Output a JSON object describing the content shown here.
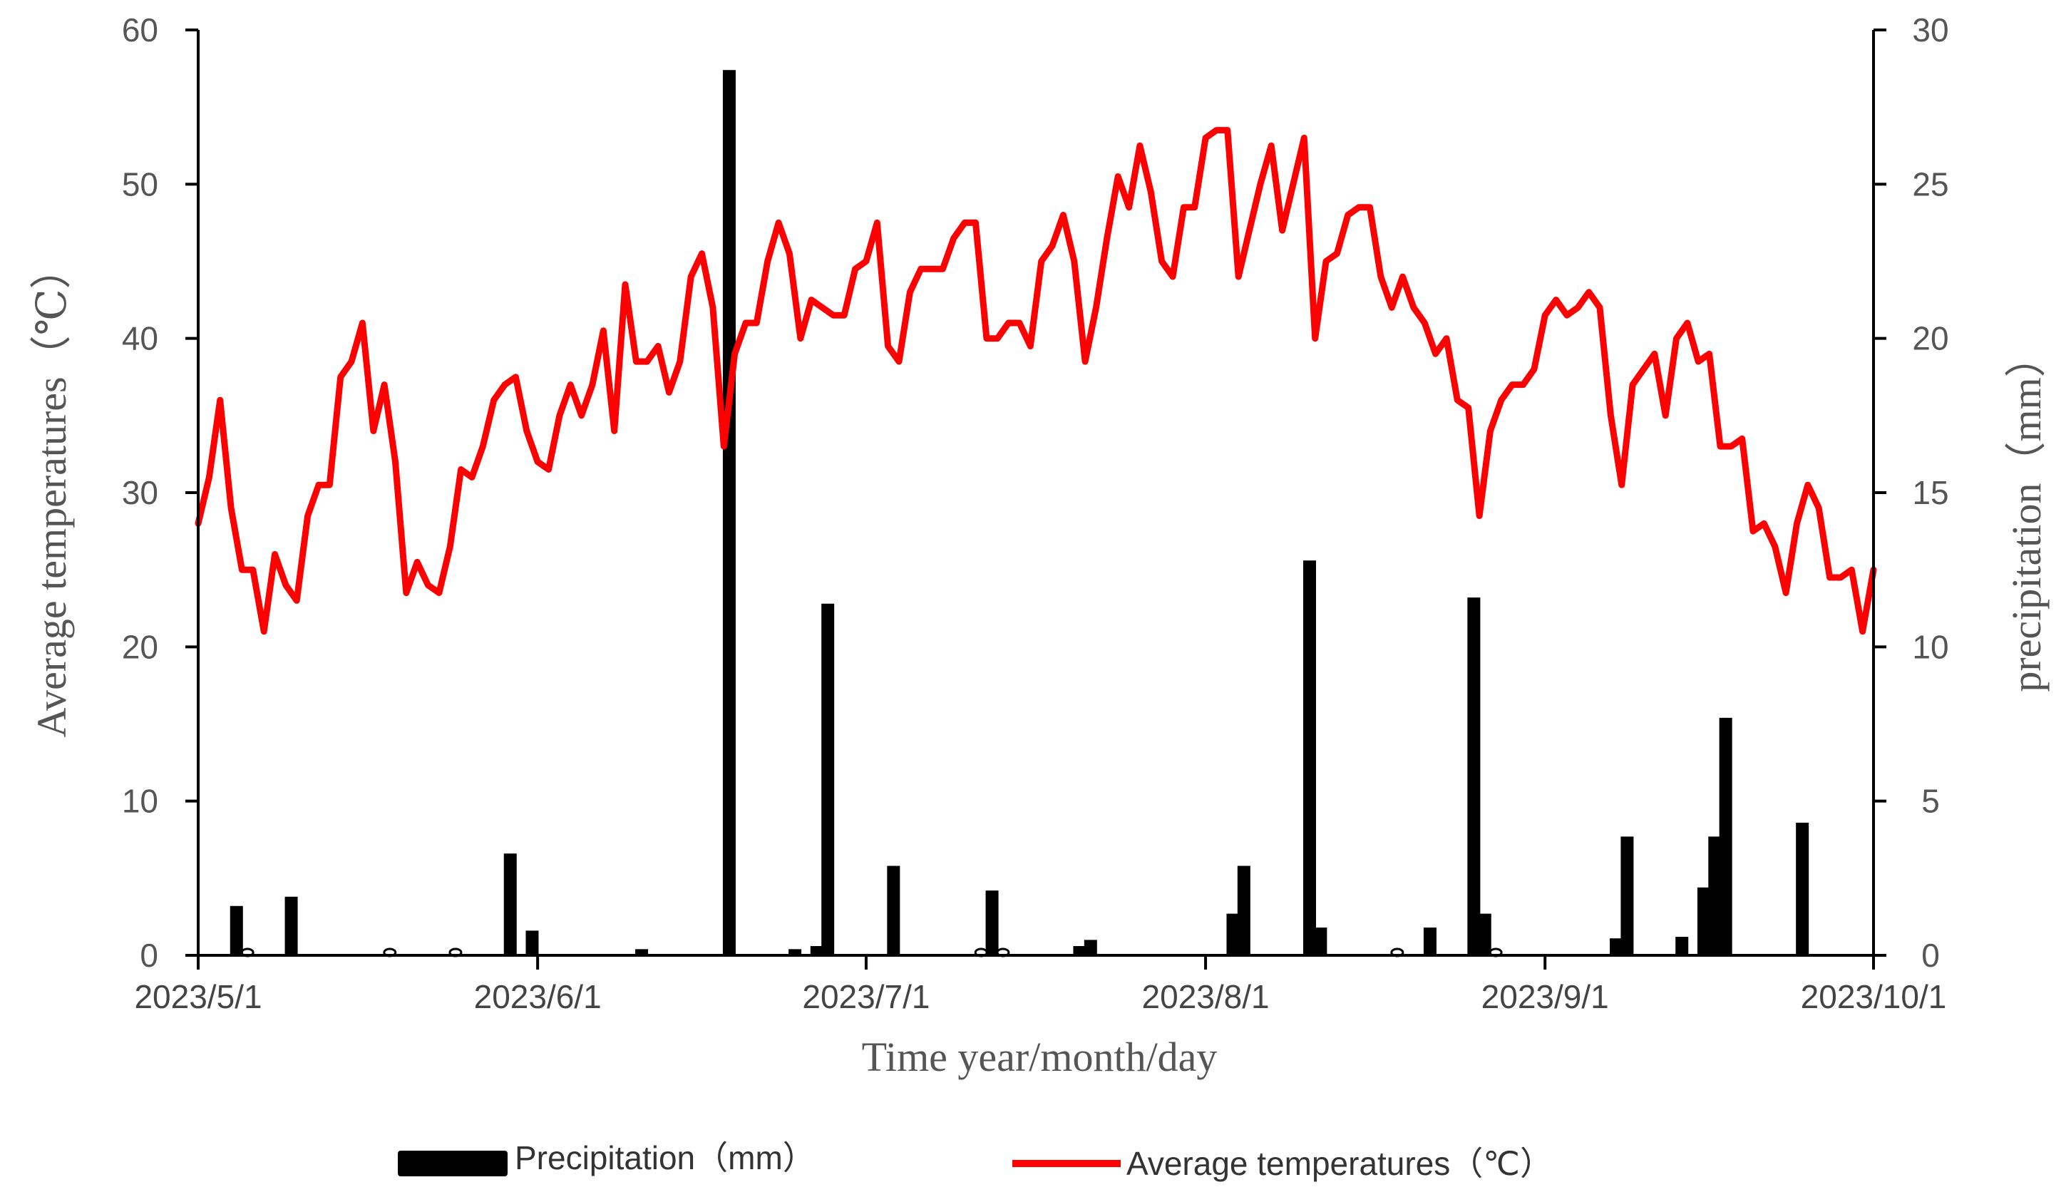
{
  "chart_data": {
    "type": "bar+line",
    "title": "",
    "xlabel": "Time year/month/day",
    "ylabel_left": "Average temperatures（℃）",
    "ylabel_right": "precipitation（mm）",
    "x_start": "2023/5/1",
    "x_end": "2023/10/1",
    "x_ticks": [
      {
        "label": "2023/5/1",
        "day": 0
      },
      {
        "label": "2023/6/1",
        "day": 31
      },
      {
        "label": "2023/7/1",
        "day": 61
      },
      {
        "label": "2023/8/1",
        "day": 92
      },
      {
        "label": "2023/9/1",
        "day": 123
      },
      {
        "label": "2023/10/1",
        "day": 153
      }
    ],
    "ylim_left": [
      0,
      60
    ],
    "yticks_left": [
      "0",
      "10",
      "20",
      "30",
      "40",
      "50",
      "60"
    ],
    "ylim_right": [
      0,
      30
    ],
    "yticks_right": [
      "0",
      "5",
      "10",
      "15",
      "20",
      "25",
      "30"
    ],
    "legend": [
      {
        "name": "Precipitation（mm）",
        "color": "#000000",
        "kind": "bar"
      },
      {
        "name": "Average temperatures（℃）",
        "color": "#ff0000",
        "kind": "line"
      }
    ],
    "series": [
      {
        "name": "Average temperatures（℃）",
        "axis": "left",
        "color": "#ff0000",
        "points": [
          {
            "day": 0,
            "value": 28
          },
          {
            "day": 1,
            "value": 31
          },
          {
            "day": 2,
            "value": 36
          },
          {
            "day": 3,
            "value": 29
          },
          {
            "day": 4,
            "value": 25
          },
          {
            "day": 5,
            "value": 25
          },
          {
            "day": 6,
            "value": 21
          },
          {
            "day": 7,
            "value": 26
          },
          {
            "day": 8,
            "value": 24
          },
          {
            "day": 9,
            "value": 23
          },
          {
            "day": 10,
            "value": 28.5
          },
          {
            "day": 11,
            "value": 30.5
          },
          {
            "day": 12,
            "value": 30.5
          },
          {
            "day": 13,
            "value": 37.5
          },
          {
            "day": 14,
            "value": 38.5
          },
          {
            "day": 15,
            "value": 41
          },
          {
            "day": 16,
            "value": 34
          },
          {
            "day": 17,
            "value": 37
          },
          {
            "day": 18,
            "value": 32
          },
          {
            "day": 19,
            "value": 23.5
          },
          {
            "day": 20,
            "value": 25.5
          },
          {
            "day": 21,
            "value": 24
          },
          {
            "day": 22,
            "value": 23.5
          },
          {
            "day": 23,
            "value": 26.5
          },
          {
            "day": 24,
            "value": 31.5
          },
          {
            "day": 25,
            "value": 31
          },
          {
            "day": 26,
            "value": 33
          },
          {
            "day": 27,
            "value": 36
          },
          {
            "day": 28,
            "value": 37
          },
          {
            "day": 29,
            "value": 37.5
          },
          {
            "day": 30,
            "value": 34
          },
          {
            "day": 31,
            "value": 32
          },
          {
            "day": 32,
            "value": 31.5
          },
          {
            "day": 33,
            "value": 35
          },
          {
            "day": 34,
            "value": 37
          },
          {
            "day": 35,
            "value": 35
          },
          {
            "day": 36,
            "value": 37
          },
          {
            "day": 37,
            "value": 40.5
          },
          {
            "day": 38,
            "value": 34
          },
          {
            "day": 39,
            "value": 43.5
          },
          {
            "day": 40,
            "value": 38.5
          },
          {
            "day": 41,
            "value": 38.5
          },
          {
            "day": 42,
            "value": 39.5
          },
          {
            "day": 43,
            "value": 36.5
          },
          {
            "day": 44,
            "value": 38.5
          },
          {
            "day": 45,
            "value": 44
          },
          {
            "day": 46,
            "value": 45.5
          },
          {
            "day": 47,
            "value": 42
          },
          {
            "day": 48,
            "value": 33
          },
          {
            "day": 49,
            "value": 39
          },
          {
            "day": 50,
            "value": 41
          },
          {
            "day": 51,
            "value": 41
          },
          {
            "day": 52,
            "value": 45
          },
          {
            "day": 53,
            "value": 47.5
          },
          {
            "day": 54,
            "value": 45.5
          },
          {
            "day": 55,
            "value": 40
          },
          {
            "day": 56,
            "value": 42.5
          },
          {
            "day": 57,
            "value": 42
          },
          {
            "day": 58,
            "value": 41.5
          },
          {
            "day": 59,
            "value": 41.5
          },
          {
            "day": 60,
            "value": 44.5
          },
          {
            "day": 61,
            "value": 45
          },
          {
            "day": 62,
            "value": 47.5
          },
          {
            "day": 63,
            "value": 39.5
          },
          {
            "day": 64,
            "value": 38.5
          },
          {
            "day": 65,
            "value": 43
          },
          {
            "day": 66,
            "value": 44.5
          },
          {
            "day": 67,
            "value": 44.5
          },
          {
            "day": 68,
            "value": 44.5
          },
          {
            "day": 69,
            "value": 46.5
          },
          {
            "day": 70,
            "value": 47.5
          },
          {
            "day": 71,
            "value": 47.5
          },
          {
            "day": 72,
            "value": 40
          },
          {
            "day": 73,
            "value": 40
          },
          {
            "day": 74,
            "value": 41
          },
          {
            "day": 75,
            "value": 41
          },
          {
            "day": 76,
            "value": 39.5
          },
          {
            "day": 77,
            "value": 45
          },
          {
            "day": 78,
            "value": 46
          },
          {
            "day": 79,
            "value": 48
          },
          {
            "day": 80,
            "value": 45
          },
          {
            "day": 81,
            "value": 38.5
          },
          {
            "day": 82,
            "value": 42
          },
          {
            "day": 83,
            "value": 46.5
          },
          {
            "day": 84,
            "value": 50.5
          },
          {
            "day": 85,
            "value": 48.5
          },
          {
            "day": 86,
            "value": 52.5
          },
          {
            "day": 87,
            "value": 49.5
          },
          {
            "day": 88,
            "value": 45
          },
          {
            "day": 89,
            "value": 44
          },
          {
            "day": 90,
            "value": 48.5
          },
          {
            "day": 91,
            "value": 48.5
          },
          {
            "day": 92,
            "value": 53
          },
          {
            "day": 93,
            "value": 53.5
          },
          {
            "day": 94,
            "value": 53.5
          },
          {
            "day": 95,
            "value": 44
          },
          {
            "day": 96,
            "value": 47
          },
          {
            "day": 97,
            "value": 50
          },
          {
            "day": 98,
            "value": 52.5
          },
          {
            "day": 99,
            "value": 47
          },
          {
            "day": 100,
            "value": 50
          },
          {
            "day": 101,
            "value": 53
          },
          {
            "day": 102,
            "value": 40
          },
          {
            "day": 103,
            "value": 45
          },
          {
            "day": 104,
            "value": 45.5
          },
          {
            "day": 105,
            "value": 48
          },
          {
            "day": 106,
            "value": 48.5
          },
          {
            "day": 107,
            "value": 48.5
          },
          {
            "day": 108,
            "value": 44
          },
          {
            "day": 109,
            "value": 42
          },
          {
            "day": 110,
            "value": 44
          },
          {
            "day": 111,
            "value": 42
          },
          {
            "day": 112,
            "value": 41
          },
          {
            "day": 113,
            "value": 39
          },
          {
            "day": 114,
            "value": 40
          },
          {
            "day": 115,
            "value": 36
          },
          {
            "day": 116,
            "value": 35.5
          },
          {
            "day": 117,
            "value": 28.5
          },
          {
            "day": 118,
            "value": 34
          },
          {
            "day": 119,
            "value": 36
          },
          {
            "day": 120,
            "value": 37
          },
          {
            "day": 121,
            "value": 37
          },
          {
            "day": 122,
            "value": 38
          },
          {
            "day": 123,
            "value": 41.5
          },
          {
            "day": 124,
            "value": 42.5
          },
          {
            "day": 125,
            "value": 41.5
          },
          {
            "day": 126,
            "value": 42
          },
          {
            "day": 127,
            "value": 43
          },
          {
            "day": 128,
            "value": 42
          },
          {
            "day": 129,
            "value": 35
          },
          {
            "day": 130,
            "value": 30.5
          },
          {
            "day": 131,
            "value": 37
          },
          {
            "day": 132,
            "value": 38
          },
          {
            "day": 133,
            "value": 39
          },
          {
            "day": 134,
            "value": 35
          },
          {
            "day": 135,
            "value": 40
          },
          {
            "day": 136,
            "value": 41
          },
          {
            "day": 137,
            "value": 38.5
          },
          {
            "day": 138,
            "value": 39
          },
          {
            "day": 139,
            "value": 33
          },
          {
            "day": 140,
            "value": 33
          },
          {
            "day": 141,
            "value": 33.5
          },
          {
            "day": 142,
            "value": 27.5
          },
          {
            "day": 143,
            "value": 28
          },
          {
            "day": 144,
            "value": 26.5
          },
          {
            "day": 145,
            "value": 23.5
          },
          {
            "day": 146,
            "value": 28
          },
          {
            "day": 147,
            "value": 30.5
          },
          {
            "day": 148,
            "value": 29
          },
          {
            "day": 149,
            "value": 24.5
          },
          {
            "day": 150,
            "value": 24.5
          },
          {
            "day": 151,
            "value": 25
          },
          {
            "day": 152,
            "value": 21
          },
          {
            "day": 153,
            "value": 25
          }
        ]
      },
      {
        "name": "Precipitation（mm）",
        "axis": "right",
        "color": "#000000",
        "points": [
          {
            "day": 3.5,
            "value": 1.6
          },
          {
            "day": 4.5,
            "value": 0.1
          },
          {
            "day": 8.5,
            "value": 1.9
          },
          {
            "day": 17.5,
            "value": 0.1
          },
          {
            "day": 23.5,
            "value": 0.1
          },
          {
            "day": 28.5,
            "value": 3.3
          },
          {
            "day": 30.5,
            "value": 0.8
          },
          {
            "day": 40.5,
            "value": 0.2
          },
          {
            "day": 48.5,
            "value": 28.7
          },
          {
            "day": 54.5,
            "value": 0.2
          },
          {
            "day": 56.5,
            "value": 0.3
          },
          {
            "day": 57.5,
            "value": 11.4
          },
          {
            "day": 63.5,
            "value": 2.9
          },
          {
            "day": 71.5,
            "value": 0.1
          },
          {
            "day": 72.5,
            "value": 2.1
          },
          {
            "day": 73.5,
            "value": 0.1
          },
          {
            "day": 80.5,
            "value": 0.3
          },
          {
            "day": 81.5,
            "value": 0.5
          },
          {
            "day": 94.5,
            "value": 1.35
          },
          {
            "day": 95.5,
            "value": 2.9
          },
          {
            "day": 101.5,
            "value": 12.8
          },
          {
            "day": 102.5,
            "value": 0.9
          },
          {
            "day": 109.5,
            "value": 0.1
          },
          {
            "day": 112.5,
            "value": 0.9
          },
          {
            "day": 116.5,
            "value": 11.6
          },
          {
            "day": 117.5,
            "value": 1.35
          },
          {
            "day": 118.5,
            "value": 0.1
          },
          {
            "day": 129.5,
            "value": 0.55
          },
          {
            "day": 130.5,
            "value": 3.85
          },
          {
            "day": 135.5,
            "value": 0.6
          },
          {
            "day": 137.5,
            "value": 2.2
          },
          {
            "day": 138.5,
            "value": 3.85
          },
          {
            "day": 139.5,
            "value": 7.7
          },
          {
            "day": 146.5,
            "value": 4.3
          }
        ]
      }
    ]
  }
}
